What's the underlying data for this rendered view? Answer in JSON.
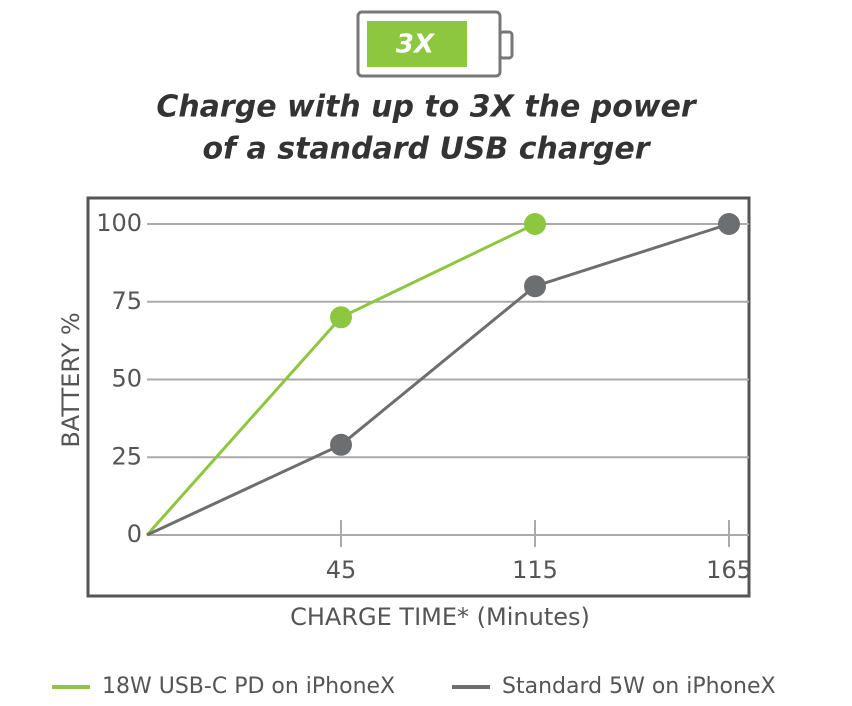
{
  "chart_data": {
    "type": "line",
    "badge": "3X",
    "title": [
      "Charge with up to 3X the power",
      "of a standard USB charger"
    ],
    "x_label": "CHARGE TIME* (Minutes)",
    "y_label": "BATTERY %",
    "categories": [
      null,
      "45",
      "115",
      "165"
    ],
    "series": [
      {
        "name": "18W USB-C PD on iPhoneX",
        "color": "#8dc63f",
        "values": [
          0,
          70,
          100,
          null
        ]
      },
      {
        "name": "Standard 5W on iPhoneX",
        "color": "#6d6e70",
        "values": [
          0,
          29,
          80,
          100
        ]
      }
    ],
    "ylim": [
      0,
      100
    ],
    "yticks": [
      0,
      25,
      50,
      75,
      100
    ],
    "grid": true
  }
}
